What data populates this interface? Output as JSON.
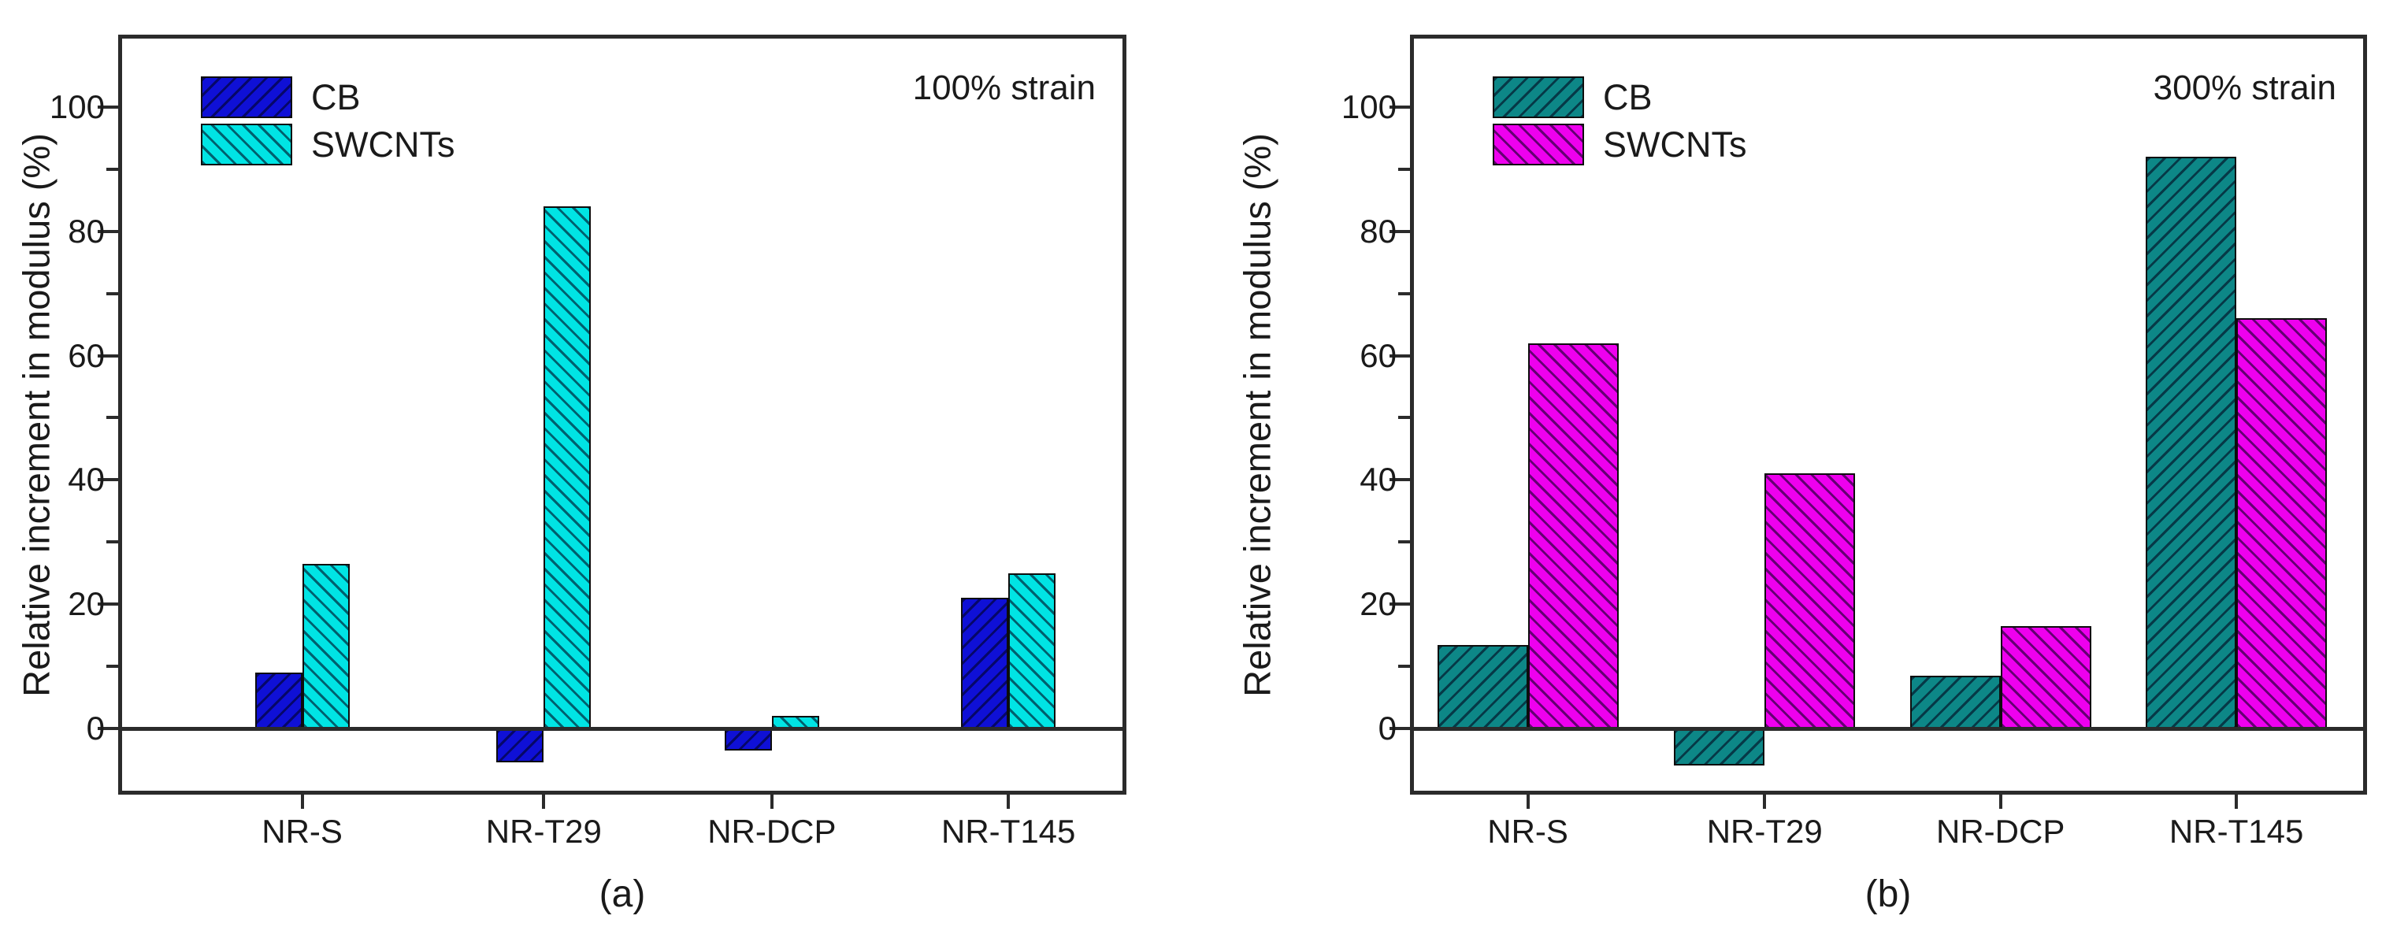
{
  "figure": {
    "background": "#ffffff",
    "axis_color": "#2b2b2b",
    "text_color": "#1a1a1a"
  },
  "chart_data": [
    {
      "type": "bar",
      "panel_label": "(a)",
      "annotation": "100% strain",
      "title": "",
      "xlabel": "",
      "ylabel": "Relative increment in modulus (%)",
      "categories": [
        "NR-S",
        "NR-T29",
        "NR-DCP",
        "NR-T145"
      ],
      "series": [
        {
          "name": "CB",
          "color": "#0f10d6",
          "hatch": "/",
          "values": [
            9,
            -5.5,
            -3.5,
            21
          ]
        },
        {
          "name": "SWCNTs",
          "color": "#00e4e4",
          "hatch": "\\",
          "values": [
            26.5,
            84,
            2,
            25
          ]
        }
      ],
      "ylim": [
        -10,
        111
      ],
      "yticks": [
        0,
        20,
        40,
        60,
        80,
        100
      ],
      "yticks_minor": [
        10,
        30,
        50,
        70,
        90
      ],
      "grid": false,
      "legend_position": "top-left",
      "annotation_position": "top-right"
    },
    {
      "type": "bar",
      "panel_label": "(b)",
      "annotation": "300% strain",
      "title": "",
      "xlabel": "",
      "ylabel": "Relative increment in modulus (%)",
      "categories": [
        "NR-S",
        "NR-T29",
        "NR-DCP",
        "NR-T145"
      ],
      "series": [
        {
          "name": "CB",
          "color": "#0d8787",
          "hatch": "/",
          "values": [
            13.5,
            -6,
            8.5,
            92
          ]
        },
        {
          "name": "SWCNTs",
          "color": "#ee00ee",
          "hatch": "\\",
          "values": [
            62,
            41,
            16.5,
            66
          ]
        }
      ],
      "ylim": [
        -10,
        111
      ],
      "yticks": [
        0,
        20,
        40,
        60,
        80,
        100
      ],
      "yticks_minor": [
        10,
        30,
        50,
        70,
        90
      ],
      "grid": false,
      "legend_position": "top-left",
      "annotation_position": "top-right"
    }
  ]
}
